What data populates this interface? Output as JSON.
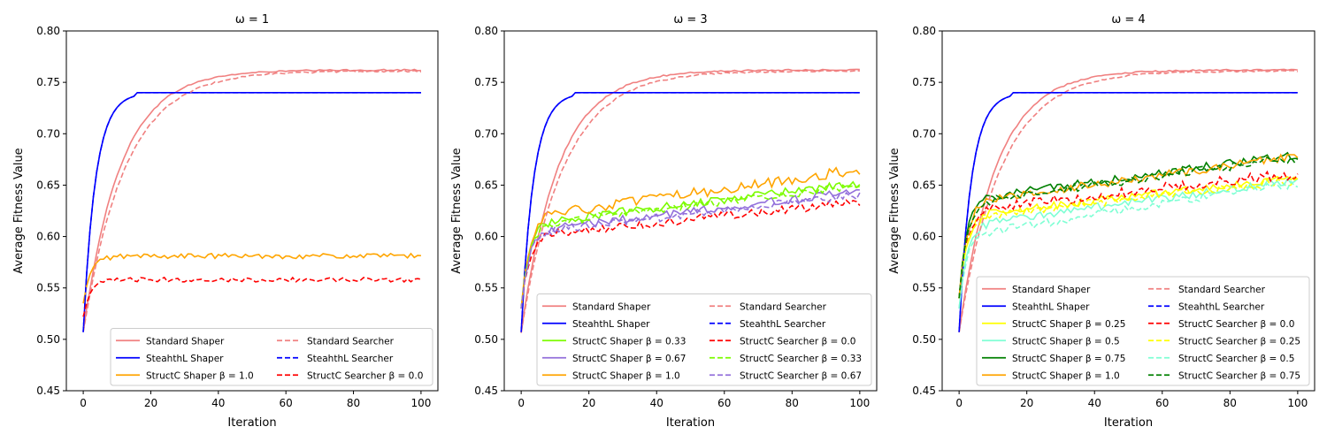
{
  "colors": {
    "standard": "#f08080",
    "stealth": "#0000ff",
    "b000": "#ff0000",
    "b025": "#ffff00",
    "b033": "#7cfc00",
    "b050": "#7fffd4",
    "b067": "#9370db",
    "b075": "#008000",
    "b100": "#ffa500"
  },
  "chart_data": [
    {
      "type": "line",
      "title": "ω = 1",
      "xlabel": "Iteration",
      "ylabel": "Average Fitness Value",
      "xlim": [
        -5,
        105
      ],
      "ylim": [
        0.45,
        0.8
      ],
      "xticks": [
        0,
        20,
        40,
        60,
        80,
        100
      ],
      "yticks": [
        "0.45",
        "0.50",
        "0.55",
        "0.60",
        "0.65",
        "0.70",
        "0.75",
        "0.80"
      ],
      "legend_placement": "lower-right",
      "legend_columns": 2,
      "series": [
        {
          "name": "Standard Shaper",
          "color_key": "standard",
          "dash": "solid",
          "shape": "std_shaper",
          "start": 0.507,
          "plateau": 0.762,
          "noise": 0.0015
        },
        {
          "name": "SteahthL Shaper",
          "color_key": "stealth",
          "dash": "solid",
          "shape": "stealth",
          "start": 0.507,
          "plateau": 0.74,
          "noise": 0
        },
        {
          "name": "StructC Shaper β = 1.0",
          "color_key": "b100",
          "dash": "solid",
          "shape": "struct",
          "start": 0.535,
          "plateau": 0.581,
          "rise": 0.0,
          "noise": 0.0025
        },
        {
          "name": "Standard Searcher",
          "color_key": "standard",
          "dash": "dashed",
          "shape": "std_searcher",
          "start": 0.507,
          "plateau": 0.761,
          "noise": 0.0015
        },
        {
          "name": "SteahthL Searcher",
          "color_key": "stealth",
          "dash": "dashed",
          "shape": "stealth",
          "start": 0.507,
          "plateau": 0.74,
          "noise": 0
        },
        {
          "name": "StructC Searcher β = 0.0",
          "color_key": "b000",
          "dash": "dashed",
          "shape": "struct",
          "start": 0.522,
          "plateau": 0.558,
          "rise": 0.0,
          "noise": 0.0022
        }
      ]
    },
    {
      "type": "line",
      "title": "ω = 3",
      "xlabel": "Iteration",
      "ylabel": "Average Fitness Value",
      "xlim": [
        -5,
        105
      ],
      "ylim": [
        0.45,
        0.8
      ],
      "xticks": [
        0,
        20,
        40,
        60,
        80,
        100
      ],
      "yticks": [
        "0.45",
        "0.50",
        "0.55",
        "0.60",
        "0.65",
        "0.70",
        "0.75",
        "0.80"
      ],
      "legend_placement": "lower-right",
      "legend_columns": 2,
      "series": [
        {
          "name": "Standard Shaper",
          "color_key": "standard",
          "dash": "solid",
          "shape": "std_shaper",
          "start": 0.507,
          "plateau": 0.762,
          "noise": 0.0015
        },
        {
          "name": "SteahthL Shaper",
          "color_key": "stealth",
          "dash": "solid",
          "shape": "stealth",
          "start": 0.507,
          "plateau": 0.74,
          "noise": 0
        },
        {
          "name": "StructC Shaper β = 0.33",
          "color_key": "b033",
          "dash": "solid",
          "shape": "struct",
          "start": 0.53,
          "plateau": 0.612,
          "rise": 0.038,
          "noise": 0.004
        },
        {
          "name": "StructC Shaper β = 0.67",
          "color_key": "b067",
          "dash": "solid",
          "shape": "struct",
          "start": 0.53,
          "plateau": 0.605,
          "rise": 0.037,
          "noise": 0.004
        },
        {
          "name": "StructC Shaper β = 1.0",
          "color_key": "b100",
          "dash": "solid",
          "shape": "struct",
          "start": 0.53,
          "plateau": 0.618,
          "rise": 0.045,
          "noise": 0.005
        },
        {
          "name": "Standard Searcher",
          "color_key": "standard",
          "dash": "dashed",
          "shape": "std_searcher",
          "start": 0.507,
          "plateau": 0.761,
          "noise": 0.0015
        },
        {
          "name": "SteahthL Searcher",
          "color_key": "stealth",
          "dash": "dashed",
          "shape": "stealth",
          "start": 0.507,
          "plateau": 0.74,
          "noise": 0
        },
        {
          "name": "StructC Searcher β = 0.0",
          "color_key": "b000",
          "dash": "dashed",
          "shape": "struct",
          "start": 0.53,
          "plateau": 0.6,
          "rise": 0.032,
          "noise": 0.004
        },
        {
          "name": "StructC Searcher β = 0.33",
          "color_key": "b033",
          "dash": "dashed",
          "shape": "struct",
          "start": 0.53,
          "plateau": 0.61,
          "rise": 0.038,
          "noise": 0.004
        },
        {
          "name": "StructC Searcher β = 0.67",
          "color_key": "b067",
          "dash": "dashed",
          "shape": "struct",
          "start": 0.53,
          "plateau": 0.603,
          "rise": 0.036,
          "noise": 0.004
        }
      ]
    },
    {
      "type": "line",
      "title": "ω = 4",
      "xlabel": "Iteration",
      "ylabel": "Average Fitness Value",
      "xlim": [
        -5,
        105
      ],
      "ylim": [
        0.45,
        0.8
      ],
      "xticks": [
        0,
        20,
        40,
        60,
        80,
        100
      ],
      "yticks": [
        "0.45",
        "0.50",
        "0.55",
        "0.60",
        "0.65",
        "0.70",
        "0.75",
        "0.80"
      ],
      "legend_placement": "lower-right",
      "legend_columns": 2,
      "series": [
        {
          "name": "Standard Shaper",
          "color_key": "standard",
          "dash": "solid",
          "shape": "std_shaper",
          "start": 0.507,
          "plateau": 0.762,
          "noise": 0.0015
        },
        {
          "name": "SteahthL Shaper",
          "color_key": "stealth",
          "dash": "solid",
          "shape": "stealth",
          "start": 0.507,
          "plateau": 0.74,
          "noise": 0
        },
        {
          "name": "StructC Shaper β = 0.25",
          "color_key": "b025",
          "dash": "solid",
          "shape": "struct",
          "start": 0.54,
          "plateau": 0.62,
          "rise": 0.035,
          "noise": 0.004
        },
        {
          "name": "StructC Shaper β = 0.5",
          "color_key": "b050",
          "dash": "solid",
          "shape": "struct",
          "start": 0.53,
          "plateau": 0.61,
          "rise": 0.043,
          "noise": 0.004
        },
        {
          "name": "StructC Shaper β = 0.75",
          "color_key": "b075",
          "dash": "solid",
          "shape": "struct",
          "start": 0.54,
          "plateau": 0.635,
          "rise": 0.043,
          "noise": 0.004
        },
        {
          "name": "StructC Shaper β = 1.0",
          "color_key": "b100",
          "dash": "solid",
          "shape": "struct",
          "start": 0.54,
          "plateau": 0.632,
          "rise": 0.044,
          "noise": 0.004
        },
        {
          "name": "Standard Searcher",
          "color_key": "standard",
          "dash": "dashed",
          "shape": "std_searcher",
          "start": 0.507,
          "plateau": 0.761,
          "noise": 0.0015
        },
        {
          "name": "SteahthL Searcher",
          "color_key": "stealth",
          "dash": "dashed",
          "shape": "stealth",
          "start": 0.507,
          "plateau": 0.74,
          "noise": 0
        },
        {
          "name": "StructC Searcher β = 0.0",
          "color_key": "b000",
          "dash": "dashed",
          "shape": "struct",
          "start": 0.54,
          "plateau": 0.625,
          "rise": 0.035,
          "noise": 0.005
        },
        {
          "name": "StructC Searcher β = 0.25",
          "color_key": "b025",
          "dash": "dashed",
          "shape": "struct",
          "start": 0.54,
          "plateau": 0.618,
          "rise": 0.035,
          "noise": 0.004
        },
        {
          "name": "StructC Searcher β = 0.5",
          "color_key": "b050",
          "dash": "dashed",
          "shape": "struct",
          "start": 0.53,
          "plateau": 0.6,
          "rise": 0.05,
          "noise": 0.004
        },
        {
          "name": "StructC Searcher β = 0.75",
          "color_key": "b075",
          "dash": "dashed",
          "shape": "struct",
          "start": 0.54,
          "plateau": 0.632,
          "rise": 0.043,
          "noise": 0.004
        }
      ]
    }
  ]
}
